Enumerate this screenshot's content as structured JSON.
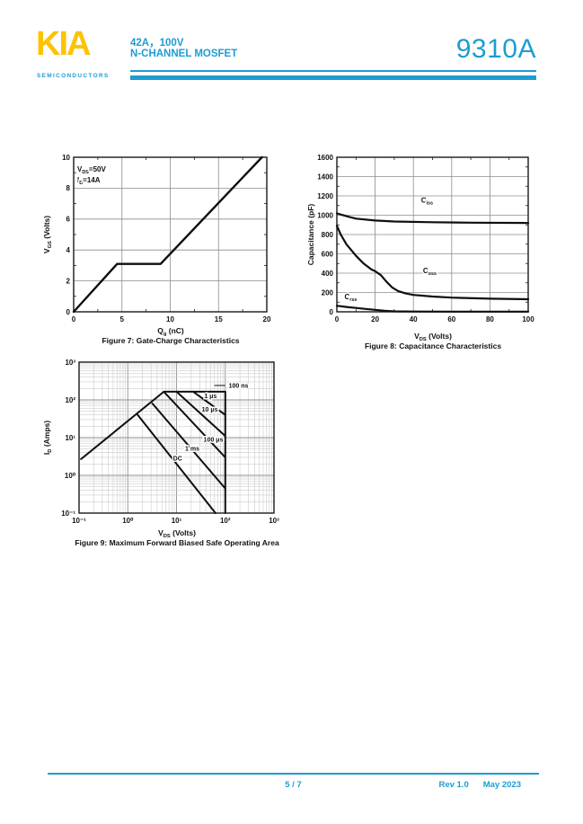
{
  "header": {
    "logo_text": "KIA",
    "logo_subtext": "SEMICONDUCTORS",
    "rating_line": "42A，100V",
    "device_type": "N-CHANNEL MOSFET",
    "part_number": "9310A",
    "accent_color": "#1e9cd1",
    "logo_color": "#fdc303"
  },
  "footer": {
    "page_indicator": "5 / 7",
    "revision": "Rev 1.0",
    "date": "May 2023"
  },
  "chart_data": [
    {
      "id": "fig7",
      "type": "line",
      "caption": "Figure 7: Gate-Charge Characteristics",
      "xlabel_rich": [
        [
          "Q"
        ],
        [
          "g",
          "sub"
        ],
        [
          " (nC)"
        ]
      ],
      "ylabel_rich": [
        [
          "V"
        ],
        [
          "GS",
          "sub"
        ],
        [
          " (Volts)"
        ]
      ],
      "xlim": [
        0,
        20
      ],
      "ylim": [
        0,
        10
      ],
      "xticks": [
        0,
        5,
        10,
        15,
        20
      ],
      "yticks": [
        0,
        2,
        4,
        6,
        8,
        10
      ],
      "xminor": [
        2.5,
        7.5,
        12.5,
        17.5
      ],
      "yminor": [
        1,
        3,
        5,
        7,
        9
      ],
      "grid": true,
      "annotation_lines": [
        [
          [
            "V"
          ],
          [
            "DS",
            "sub"
          ],
          [
            "=50V"
          ]
        ],
        [
          [
            "I"
          ],
          [
            "D",
            "sub"
          ],
          [
            "=14A"
          ]
        ]
      ],
      "series": [
        {
          "name": "gate-charge-curve",
          "points": [
            [
              0,
              0
            ],
            [
              4.5,
              3.1
            ],
            [
              9,
              3.1
            ],
            [
              19.5,
              10
            ]
          ]
        }
      ]
    },
    {
      "id": "fig8",
      "type": "line",
      "caption": "Figure 8: Capacitance Characteristics",
      "xlabel_rich": [
        [
          "V"
        ],
        [
          "DS",
          "sub"
        ],
        [
          " (Volts)"
        ]
      ],
      "ylabel": "Capacitance (pF)",
      "xlim": [
        0,
        100
      ],
      "ylim": [
        0,
        1600
      ],
      "xticks": [
        0,
        20,
        40,
        60,
        80,
        100
      ],
      "yticks": [
        0,
        200,
        400,
        600,
        800,
        1000,
        1200,
        1400,
        1600
      ],
      "xminor": [
        10,
        30,
        50,
        70,
        90
      ],
      "yminor": [
        100,
        300,
        500,
        700,
        900,
        1100,
        1300,
        1500
      ],
      "grid": true,
      "series": [
        {
          "name": "Ciss",
          "label_rich": [
            [
              "C"
            ],
            [
              "iss",
              "sub"
            ]
          ],
          "label_at": [
            44,
            1130
          ],
          "points": [
            [
              0,
              1020
            ],
            [
              5,
              990
            ],
            [
              10,
              965
            ],
            [
              20,
              945
            ],
            [
              30,
              935
            ],
            [
              50,
              927
            ],
            [
              70,
              923
            ],
            [
              100,
              920
            ]
          ]
        },
        {
          "name": "Coss",
          "label_rich": [
            [
              "C"
            ],
            [
              "oss",
              "sub"
            ]
          ],
          "label_at": [
            45,
            400
          ],
          "points": [
            [
              0,
              890
            ],
            [
              2,
              800
            ],
            [
              5,
              700
            ],
            [
              10,
              580
            ],
            [
              14,
              500
            ],
            [
              18,
              440
            ],
            [
              20,
              420
            ],
            [
              23,
              380
            ],
            [
              26,
              310
            ],
            [
              29,
              250
            ],
            [
              32,
              215
            ],
            [
              36,
              190
            ],
            [
              40,
              175
            ],
            [
              50,
              158
            ],
            [
              60,
              147
            ],
            [
              80,
              136
            ],
            [
              100,
              130
            ]
          ]
        },
        {
          "name": "Crss",
          "label_rich": [
            [
              "C"
            ],
            [
              "rss",
              "sub"
            ]
          ],
          "label_at": [
            4,
            130
          ],
          "points": [
            [
              0,
              62
            ],
            [
              5,
              50
            ],
            [
              10,
              40
            ],
            [
              15,
              30
            ],
            [
              20,
              20
            ],
            [
              25,
              11
            ],
            [
              30,
              5
            ],
            [
              40,
              3
            ],
            [
              60,
              2
            ],
            [
              100,
              2
            ]
          ]
        }
      ]
    },
    {
      "id": "fig9",
      "type": "loglog",
      "caption": "Figure 9: Maximum Forward Biased Safe Operating Area",
      "xlabel_rich": [
        [
          "V"
        ],
        [
          "DS",
          "sub"
        ],
        [
          " (Volts)"
        ]
      ],
      "ylabel_rich": [
        [
          "I"
        ],
        [
          "D",
          "sub"
        ],
        [
          " (Amps)"
        ]
      ],
      "xlim": [
        0.1,
        1000
      ],
      "ylim": [
        0.1,
        1000
      ],
      "xticks": [
        0.1,
        1,
        10,
        100,
        1000
      ],
      "xtick_labels": [
        "10⁻¹",
        "10⁰",
        "10¹",
        "10²",
        "10³"
      ],
      "yticks": [
        0.1,
        1,
        10,
        100,
        1000
      ],
      "ytick_labels": [
        "10⁻¹",
        "10⁰",
        "10¹",
        "10²",
        "10³"
      ],
      "grid": true,
      "series": [
        {
          "name": "soa-envelope-100ns",
          "points": [
            [
              0.11,
              2.7
            ],
            [
              5.5,
              165
            ],
            [
              100,
              165
            ],
            [
              100,
              0.1
            ]
          ]
        },
        {
          "name": "1us",
          "points": [
            [
              22,
              165
            ],
            [
              100,
              40
            ]
          ]
        },
        {
          "name": "10us",
          "points": [
            [
              10,
              165
            ],
            [
              100,
              11
            ]
          ]
        },
        {
          "name": "100us",
          "points": [
            [
              5.5,
              165
            ],
            [
              100,
              3
            ]
          ]
        },
        {
          "name": "1ms",
          "points": [
            [
              3.2,
              80
            ],
            [
              100,
              0.45
            ]
          ]
        },
        {
          "name": "DC",
          "points": [
            [
              1.6,
              40
            ],
            [
              63,
              0.1
            ]
          ]
        }
      ],
      "labels": [
        {
          "text": "100 ns",
          "at": [
            118,
            210
          ],
          "leader": true
        },
        {
          "text": "1 μs",
          "at": [
            37,
            111
          ]
        },
        {
          "text": "10 μs",
          "at": [
            33,
            49
          ]
        },
        {
          "text": "100 μs",
          "at": [
            36,
            7.8
          ]
        },
        {
          "text": "1 ms",
          "at": [
            15,
            4.5
          ]
        },
        {
          "text": "DC",
          "at": [
            8.5,
            2.5
          ]
        }
      ]
    }
  ]
}
